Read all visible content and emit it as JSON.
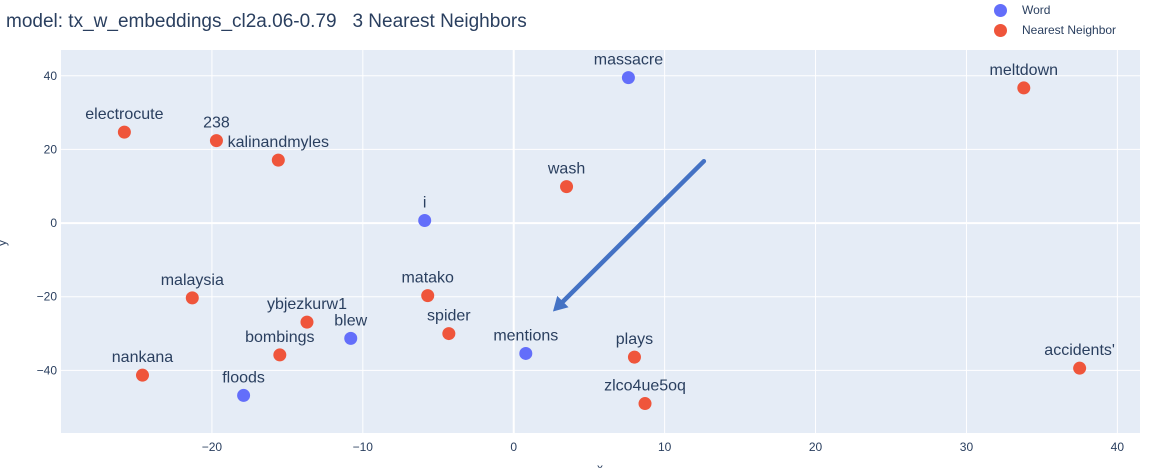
{
  "title_prefix": "model: tx_w_embeddings_cl2a.06-0.79",
  "title_suffix": "3 Nearest Neighbors",
  "colors": {
    "Word": "#636efa",
    "Nearest Neighbor": "#ef553b",
    "arrow": "#4472c4",
    "plot_bg": "#e5ecf6"
  },
  "chart_data": {
    "type": "scatter",
    "xlabel": "x",
    "ylabel": "y",
    "xlim": [
      -30,
      41.5
    ],
    "ylim": [
      -57,
      47
    ],
    "x_ticks": [
      -20,
      -10,
      0,
      10,
      20,
      30,
      40
    ],
    "y_ticks": [
      -40,
      -20,
      0,
      20,
      40
    ],
    "x_tick_labels": [
      "−20",
      "−10",
      "0",
      "10",
      "20",
      "30",
      "40"
    ],
    "y_tick_labels": [
      "−40",
      "−20",
      "0",
      "20",
      "40"
    ],
    "legend": [
      "Word",
      "Nearest Neighbor"
    ],
    "legend_position": "top-right",
    "grid": true,
    "points": [
      {
        "label": "massacre",
        "x": 7.6,
        "y": 39.5,
        "series": "Word"
      },
      {
        "label": "i",
        "x": -5.9,
        "y": 0.7,
        "series": "Word"
      },
      {
        "label": "blew",
        "x": -10.8,
        "y": -31.3,
        "series": "Word"
      },
      {
        "label": "mentions",
        "x": 0.8,
        "y": -35.4,
        "series": "Word"
      },
      {
        "label": "floods",
        "x": -17.9,
        "y": -46.8,
        "series": "Word"
      },
      {
        "label": "meltdown",
        "x": 33.8,
        "y": 36.7,
        "series": "Nearest Neighbor"
      },
      {
        "label": "electrocute",
        "x": -25.8,
        "y": 24.7,
        "series": "Nearest Neighbor"
      },
      {
        "label": "238",
        "x": -19.7,
        "y": 22.4,
        "series": "Nearest Neighbor"
      },
      {
        "label": "kalinandmyles",
        "x": -15.6,
        "y": 17.1,
        "series": "Nearest Neighbor"
      },
      {
        "label": "wash",
        "x": 3.5,
        "y": 9.9,
        "series": "Nearest Neighbor"
      },
      {
        "label": "malaysia",
        "x": -21.3,
        "y": -20.3,
        "series": "Nearest Neighbor"
      },
      {
        "label": "matako",
        "x": -5.7,
        "y": -19.7,
        "series": "Nearest Neighbor"
      },
      {
        "label": "ybjezkurw1",
        "x": -13.7,
        "y": -26.9,
        "series": "Nearest Neighbor"
      },
      {
        "label": "spider",
        "x": -4.3,
        "y": -30.0,
        "series": "Nearest Neighbor"
      },
      {
        "label": "bombings",
        "x": -15.5,
        "y": -35.8,
        "series": "Nearest Neighbor"
      },
      {
        "label": "nankana",
        "x": -24.6,
        "y": -41.3,
        "series": "Nearest Neighbor"
      },
      {
        "label": "plays",
        "x": 8.0,
        "y": -36.4,
        "series": "Nearest Neighbor"
      },
      {
        "label": "zlco4ue5oq",
        "x": 8.7,
        "y": -49.0,
        "series": "Nearest Neighbor"
      },
      {
        "label": "accidents'",
        "x": 37.5,
        "y": -39.4,
        "series": "Nearest Neighbor"
      }
    ],
    "annotation_arrow": {
      "from": [
        12.6,
        16.8
      ],
      "to": [
        2.6,
        -24.0
      ]
    }
  }
}
